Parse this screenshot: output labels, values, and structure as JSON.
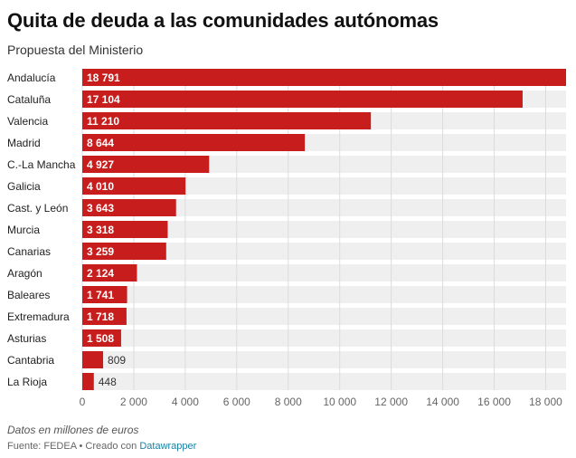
{
  "header": {
    "title": "Quita de deuda a las comunidades autónomas",
    "subtitle": "Propuesta del Ministerio"
  },
  "footer": {
    "note": "Datos en millones de euros",
    "source_prefix": "Fuente: FEDEA • Creado con ",
    "source_link": "Datawrapper"
  },
  "colors": {
    "bar": "#c71e1d",
    "track": "#efefef",
    "grid": "#dcdcdc",
    "label_inside": "#ffffff",
    "label_outside": "#333333",
    "link": "#1d81a2"
  },
  "chart_data": {
    "type": "bar",
    "orientation": "horizontal",
    "title": "Quita de deuda a las comunidades autónomas",
    "subtitle": "Propuesta del Ministerio",
    "categories": [
      "Andalucía",
      "Cataluña",
      "Valencia",
      "Madrid",
      "C.-La Mancha",
      "Galicia",
      "Cast. y León",
      "Murcia",
      "Canarias",
      "Aragón",
      "Baleares",
      "Extremadura",
      "Asturias",
      "Cantabria",
      "La Rioja"
    ],
    "values": [
      18791,
      17104,
      11210,
      8644,
      4927,
      4010,
      3643,
      3318,
      3259,
      2124,
      1741,
      1718,
      1508,
      809,
      448
    ],
    "value_labels": [
      "18 791",
      "17 104",
      "11 210",
      "8 644",
      "4 927",
      "4 010",
      "3 643",
      "3 318",
      "3 259",
      "2 124",
      "1 741",
      "1 718",
      "1 508",
      "809",
      "448"
    ],
    "x_ticks": [
      0,
      2000,
      4000,
      6000,
      8000,
      10000,
      12000,
      14000,
      16000,
      18000
    ],
    "x_tick_labels": [
      "0",
      "2 000",
      "4 000",
      "6 000",
      "8 000",
      "10 000",
      "12 000",
      "14 000",
      "16 000",
      "18 000"
    ],
    "xlim": [
      0,
      18791
    ],
    "grid": true,
    "legend": "none"
  }
}
